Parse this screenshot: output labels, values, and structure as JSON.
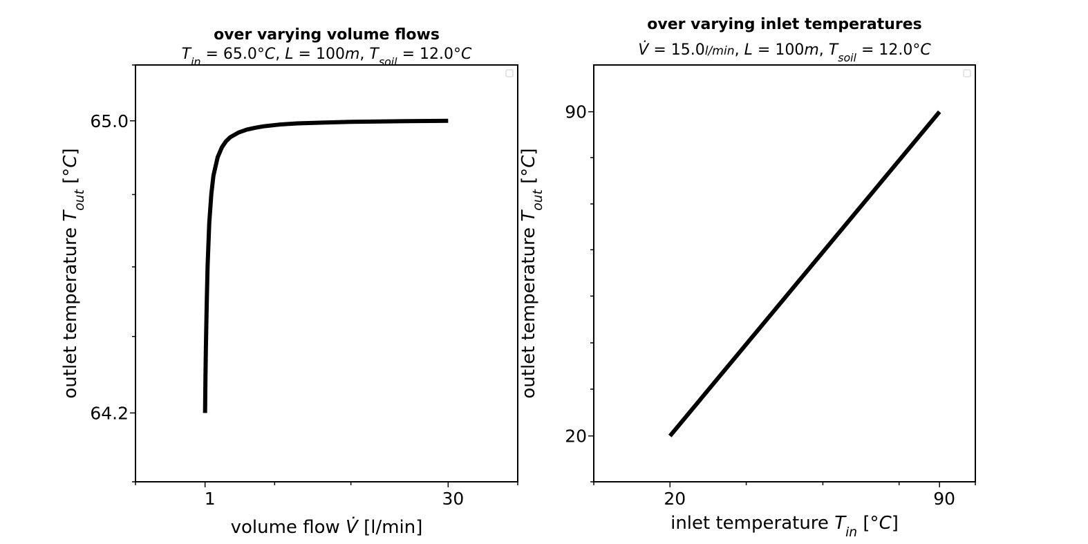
{
  "chart_data": [
    {
      "type": "line",
      "title": "over varying volume flows",
      "subtitle": {
        "parts": [
          {
            "text": "T",
            "italic": true
          },
          {
            "text": "in",
            "italic": true,
            "sub": true
          },
          {
            "text": " = 65.0°",
            "italic": false
          },
          {
            "text": "C",
            "italic": true
          },
          {
            "text": ",  ",
            "italic": false
          },
          {
            "text": "L",
            "italic": true
          },
          {
            "text": " = 100",
            "italic": false
          },
          {
            "text": "m",
            "italic": true
          },
          {
            "text": ",  ",
            "italic": false
          },
          {
            "text": "T",
            "italic": true
          },
          {
            "text": "soil",
            "italic": true,
            "sub": true
          },
          {
            "text": " = 12.0°",
            "italic": false
          },
          {
            "text": "C",
            "italic": true
          }
        ]
      },
      "xlabel": {
        "parts": [
          {
            "text": "volume flow ",
            "italic": false
          },
          {
            "text": "V̇",
            "italic": true
          },
          {
            "text": " [l/min]",
            "italic": false
          }
        ]
      },
      "ylabel": {
        "parts": [
          {
            "text": "outlet temperature ",
            "italic": false
          },
          {
            "text": "T",
            "italic": true
          },
          {
            "text": "out",
            "italic": true,
            "sub": true
          },
          {
            "text": " [°",
            "italic": false
          },
          {
            "text": "C",
            "italic": true
          },
          {
            "text": "]",
            "italic": false
          }
        ]
      },
      "xlim": [
        -7.3,
        38.3
      ],
      "ylim": [
        64.0115,
        65.1529
      ],
      "xticks_labeled": [
        {
          "value": 1,
          "label": "1"
        },
        {
          "value": 30,
          "label": "30"
        }
      ],
      "xticks_minor": [
        -7.3,
        9.3,
        18.4,
        38.3
      ],
      "yticks_labeled": [
        {
          "value": 64.2,
          "label": "64.2"
        },
        {
          "value": 65.0,
          "label": "65.0"
        }
      ],
      "yticks_minor": [
        64.0115,
        64.4095,
        64.6,
        64.7981,
        65.1529
      ],
      "line_color": "#000000",
      "legend": "top-right (empty)",
      "grid": false,
      "series": [
        {
          "x": [
            1.0,
            1.05,
            1.1,
            1.2,
            1.3,
            1.5,
            1.75,
            2.0,
            2.5,
            3.0,
            3.5,
            4.0,
            5.0,
            6.0,
            7.0,
            8.0,
            10.0,
            12.0,
            15.0,
            18.0,
            21.0,
            25.0,
            30.0
          ],
          "y": [
            64.2,
            64.3,
            64.38,
            64.5,
            64.6,
            64.72,
            64.8,
            64.85,
            64.9,
            64.927,
            64.944,
            64.955,
            64.968,
            64.976,
            64.981,
            64.985,
            64.99,
            64.993,
            64.995,
            64.997,
            64.998,
            64.999,
            65.0
          ]
        }
      ]
    },
    {
      "type": "line",
      "title": "over varying inlet temperatures",
      "subtitle": {
        "parts": [
          {
            "text": "V̇",
            "italic": true
          },
          {
            "text": " = 15.0",
            "italic": false
          },
          {
            "text": "l/min",
            "italic": true,
            "frac": true
          },
          {
            "text": ",  ",
            "italic": false
          },
          {
            "text": "L",
            "italic": true
          },
          {
            "text": " = 100",
            "italic": false
          },
          {
            "text": "m",
            "italic": true
          },
          {
            "text": ",  ",
            "italic": false
          },
          {
            "text": "T",
            "italic": true
          },
          {
            "text": "soil",
            "italic": true,
            "sub": true
          },
          {
            "text": " = 12.0°",
            "italic": false
          },
          {
            "text": "C",
            "italic": true
          }
        ]
      },
      "xlabel": {
        "parts": [
          {
            "text": "inlet temperature ",
            "italic": false
          },
          {
            "text": "T",
            "italic": true
          },
          {
            "text": "in",
            "italic": true,
            "sub": true
          },
          {
            "text": " [°",
            "italic": false
          },
          {
            "text": "C",
            "italic": true
          },
          {
            "text": "]",
            "italic": false
          }
        ]
      },
      "ylabel": {
        "parts": [
          {
            "text": "outlet temperature ",
            "italic": false
          },
          {
            "text": "T",
            "italic": true
          },
          {
            "text": "out",
            "italic": true,
            "sub": true
          },
          {
            "text": " [°",
            "italic": false
          },
          {
            "text": "C",
            "italic": true
          },
          {
            "text": "]",
            "italic": false
          }
        ]
      },
      "xlim": [
        0.2,
        99.3
      ],
      "ylim": [
        10.1,
        100.1
      ],
      "xticks_labeled": [
        {
          "value": 20,
          "label": "20"
        },
        {
          "value": 90,
          "label": "90"
        }
      ],
      "xticks_minor": [
        0.2,
        39.8,
        59.7,
        79.5,
        99.3
      ],
      "yticks_labeled": [
        {
          "value": 20,
          "label": "20"
        },
        {
          "value": 90,
          "label": "90"
        }
      ],
      "yticks_minor": [
        10.1,
        30.1,
        40.1,
        50.2,
        60.2,
        70.1,
        80.1
      ],
      "line_color": "#000000",
      "legend": "top-right (empty)",
      "grid": false,
      "series": [
        {
          "x": [
            20,
            90
          ],
          "y": [
            20,
            90
          ]
        }
      ]
    }
  ]
}
